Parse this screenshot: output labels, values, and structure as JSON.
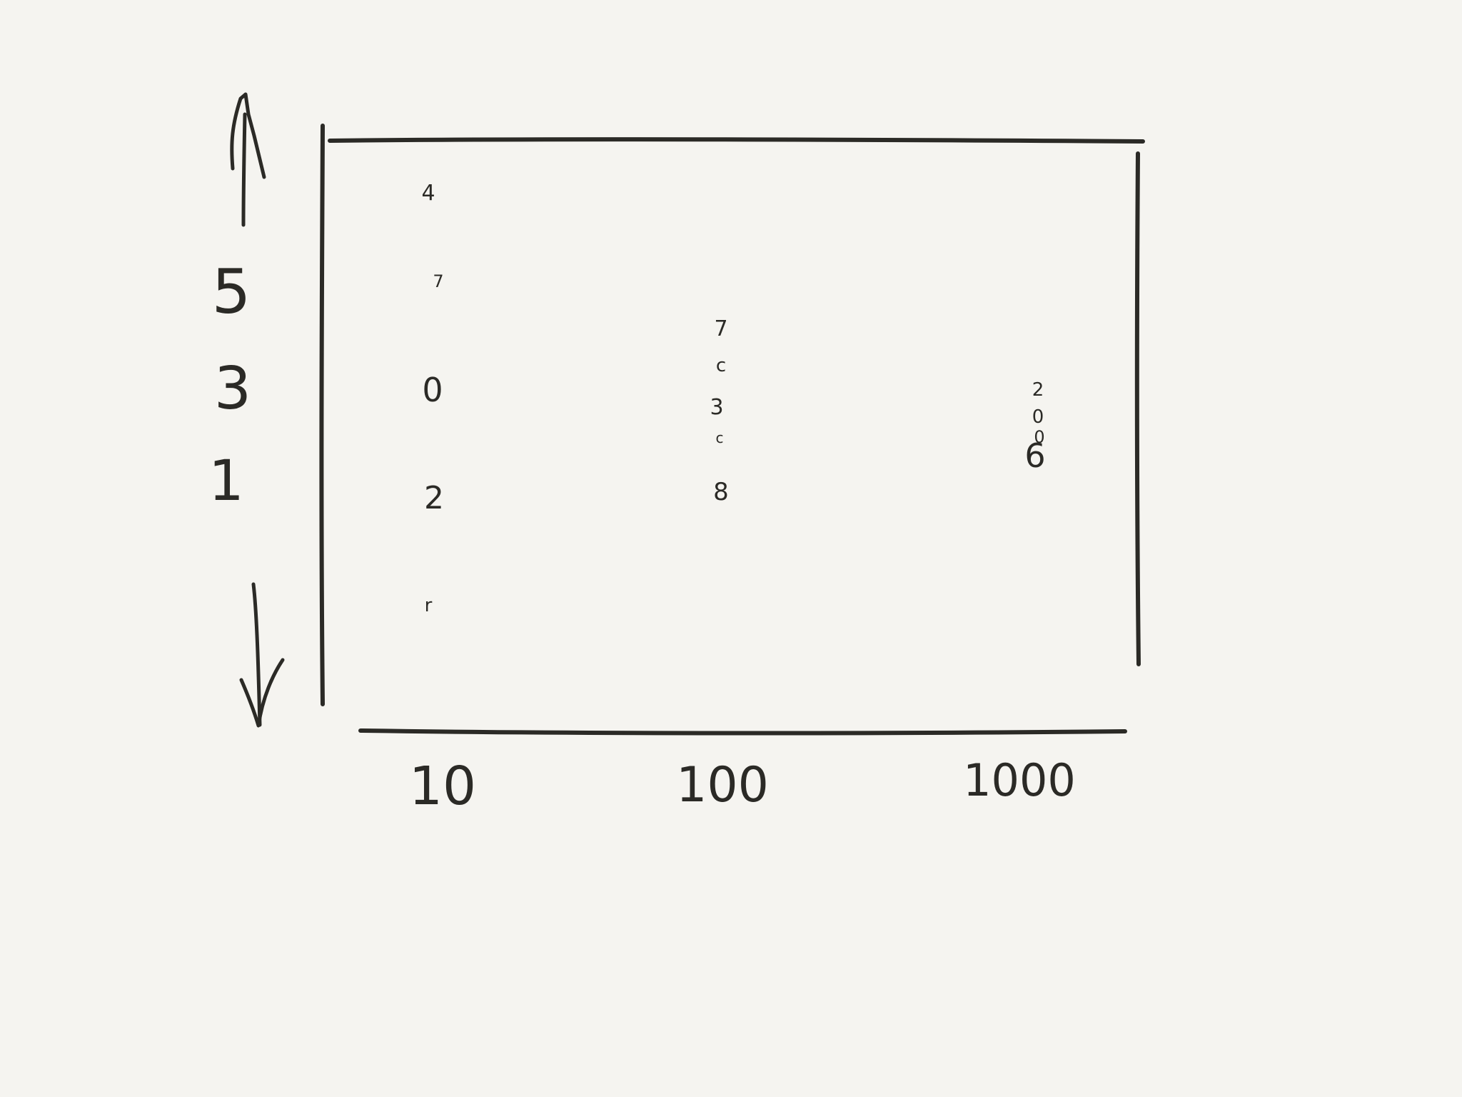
{
  "colors": {
    "background": "#f5f4f0",
    "ink": "#2b2a26"
  },
  "y_axis": {
    "icons": [
      "arrow-up-icon",
      "arrow-down-icon"
    ],
    "labels": [
      "5",
      "3",
      "1"
    ]
  },
  "x_axis": {
    "labels": [
      "10",
      "100",
      "1000"
    ]
  },
  "columns": [
    {
      "x_label": "10",
      "glyphs": [
        "4",
        "7",
        "0",
        "2",
        "r"
      ]
    },
    {
      "x_label": "100",
      "glyphs": [
        "7",
        "c",
        "3",
        "c",
        "8"
      ]
    },
    {
      "x_label": "1000",
      "glyphs": [
        "2",
        "0",
        "0",
        "6"
      ]
    }
  ]
}
